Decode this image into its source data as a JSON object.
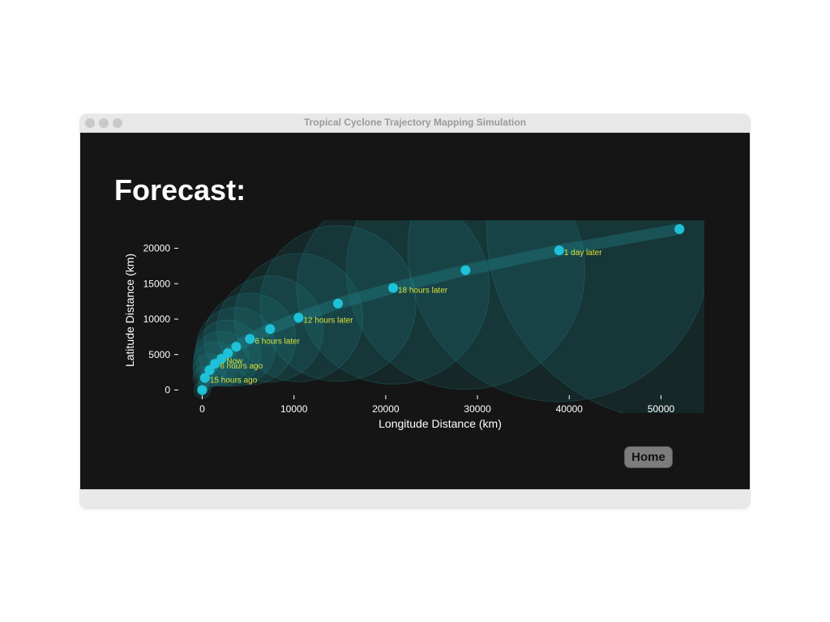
{
  "window": {
    "title": "Tropical Cyclone Trajectory Mapping Simulation"
  },
  "page": {
    "heading": "Forecast:",
    "home_label": "Home"
  },
  "colors": {
    "background": "#151515",
    "point": "#1ec2d8",
    "uncertainty": "#1f8a92",
    "label": "#d8e23a",
    "axis": "#ffffff"
  },
  "chart_data": {
    "type": "scatter",
    "title": "",
    "xlabel": "Longitude Distance (km)",
    "ylabel": "Latitude Distance (km)",
    "xlim": [
      -2000,
      55000
    ],
    "ylim": [
      -800,
      24000
    ],
    "xticks": [
      0,
      10000,
      20000,
      30000,
      40000,
      50000
    ],
    "yticks": [
      0,
      5000,
      10000,
      15000,
      20000
    ],
    "grid": false,
    "points": [
      {
        "x": 0,
        "y": 0,
        "r": 900,
        "label": ""
      },
      {
        "x": 300,
        "y": 1700,
        "r": 1300,
        "label": "15 hours ago"
      },
      {
        "x": 800,
        "y": 2800,
        "r": 1800,
        "label": ""
      },
      {
        "x": 1400,
        "y": 3700,
        "r": 2400,
        "label": "6 hours ago"
      },
      {
        "x": 2100,
        "y": 4400,
        "r": 3000,
        "label": "Now"
      },
      {
        "x": 2800,
        "y": 5200,
        "r": 3600,
        "label": ""
      },
      {
        "x": 3700,
        "y": 6100,
        "r": 4300,
        "label": ""
      },
      {
        "x": 5200,
        "y": 7200,
        "r": 5000,
        "label": "6 hours later"
      },
      {
        "x": 7400,
        "y": 8600,
        "r": 5800,
        "label": ""
      },
      {
        "x": 10500,
        "y": 10200,
        "r": 7000,
        "label": "12 hours later"
      },
      {
        "x": 14800,
        "y": 12200,
        "r": 8500,
        "label": ""
      },
      {
        "x": 20800,
        "y": 14400,
        "r": 10500,
        "label": "18 hours later"
      },
      {
        "x": 28700,
        "y": 16900,
        "r": 13000,
        "label": ""
      },
      {
        "x": 38900,
        "y": 19700,
        "r": 16500,
        "label": "1 day later"
      },
      {
        "x": 52000,
        "y": 22700,
        "r": 21000,
        "label": ""
      }
    ]
  }
}
